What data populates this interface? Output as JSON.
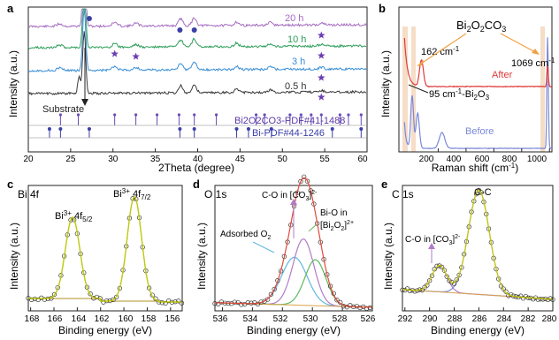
{
  "panels": {
    "a": {
      "letter": "a",
      "xlabel": "2Theta (degree)",
      "ylabel": "Intensity (a.u.)",
      "xticks": [
        "20",
        "25",
        "30",
        "35",
        "40",
        "45",
        "50",
        "55",
        "60"
      ],
      "xmin": 20,
      "xmax": 60,
      "labels": {
        "t20": "20 h",
        "t10": "10 h",
        "t3": "3 h",
        "t05": "0.5 h"
      },
      "substrate": "Substrate",
      "ref1": "Bi2O2CO3-PDF#41-1488",
      "ref2": "Bi-PDF#44-1246",
      "colors": {
        "t20": "#a56cc1",
        "t10": "#2e9e5b",
        "t3": "#3a8fd6",
        "t05": "#3a3a3a",
        "marker": "#6a3db2",
        "dot": "#3b3fa8"
      }
    },
    "b": {
      "letter": "b",
      "xlabel": "Raman shift (cm-1)",
      "ylabel": "Intensity (a.u.)",
      "xticks": [
        "200",
        "400",
        "600",
        "800",
        "1000"
      ],
      "label_compound": "Bi2O2CO3",
      "label_162": "162 cm-1",
      "label_1069": "1069 cm-1",
      "label_95": "95 cm-1-Bi2O3",
      "after": "After",
      "before": "Before",
      "colors": {
        "after": "#e03a3a",
        "before": "#7b88d8",
        "arrow": "#f0a040"
      }
    },
    "c": {
      "letter": "c",
      "title": "Bi 4f",
      "xlabel": "Binding energy (eV)",
      "ylabel": "Intensity (a.u.)",
      "xticks": [
        "168",
        "166",
        "164",
        "162",
        "160",
        "158",
        "156"
      ],
      "peak1": "Bi3+ 4f5/2",
      "peak2": "Bi3+ 4f7/2"
    },
    "d": {
      "letter": "d",
      "title": "O 1s",
      "xlabel": "Binding energy (eV)",
      "ylabel": "Intensity (a.u.)",
      "xticks": [
        "536",
        "534",
        "532",
        "530",
        "528",
        "526"
      ],
      "co_label": "C-O in [CO3]2-",
      "bio_label1": "Bi-O in",
      "bio_label2": "[Bi2O2]2+",
      "ads_label": "Adsorbed O2"
    },
    "e": {
      "letter": "e",
      "title": "C 1s",
      "xlabel": "Binding energy (eV)",
      "ylabel": "Intensity (a.u.)",
      "xticks": [
        "292",
        "290",
        "288",
        "286",
        "284",
        "282",
        "280"
      ],
      "cc_label": "C-C",
      "co_label": "C-O in [CO3]2-"
    }
  },
  "chart_data": [
    {
      "type": "line",
      "panel": "a",
      "xlabel": "2Theta (degree)",
      "ylabel": "Intensity (a.u.)",
      "xlim": [
        20,
        60
      ],
      "series": [
        {
          "name": "20 h"
        },
        {
          "name": "10 h"
        },
        {
          "name": "3 h"
        },
        {
          "name": "0.5 h"
        }
      ],
      "annotations": [
        "Substrate",
        "Bi2O2CO3-PDF#41-1488",
        "Bi-PDF#44-1246"
      ]
    },
    {
      "type": "line",
      "panel": "b",
      "xlabel": "Raman shift (cm-1)",
      "ylabel": "Intensity (a.u.)",
      "xlim": [
        0,
        1100
      ],
      "series": [
        {
          "name": "After"
        },
        {
          "name": "Before"
        }
      ],
      "annotations": [
        "Bi2O2CO3",
        "162 cm-1",
        "1069 cm-1",
        "95 cm-1-Bi2O3"
      ]
    },
    {
      "type": "line",
      "panel": "c",
      "title": "Bi 4f",
      "xlabel": "Binding energy (eV)",
      "ylabel": "Intensity (a.u.)",
      "xlim": [
        168,
        155
      ],
      "peaks": [
        {
          "label": "Bi3+ 4f5/2",
          "x": 164.4
        },
        {
          "label": "Bi3+ 4f7/2",
          "x": 159.1
        }
      ]
    },
    {
      "type": "line",
      "panel": "d",
      "title": "O 1s",
      "xlabel": "Binding energy (eV)",
      "ylabel": "Intensity (a.u.)",
      "xlim": [
        536,
        526
      ],
      "peaks": [
        {
          "label": "Adsorbed O2",
          "x": 531.2
        },
        {
          "label": "C-O in [CO3]2-",
          "x": 530.6
        },
        {
          "label": "Bi-O in [Bi2O2]2+",
          "x": 529.8
        }
      ]
    },
    {
      "type": "line",
      "panel": "e",
      "title": "C 1s",
      "xlabel": "Binding energy (eV)",
      "ylabel": "Intensity (a.u.)",
      "xlim": [
        292,
        280
      ],
      "peaks": [
        {
          "label": "C-O in [CO3]2-",
          "x": 289.2
        },
        {
          "label": "C-C",
          "x": 286.0
        }
      ]
    }
  ]
}
